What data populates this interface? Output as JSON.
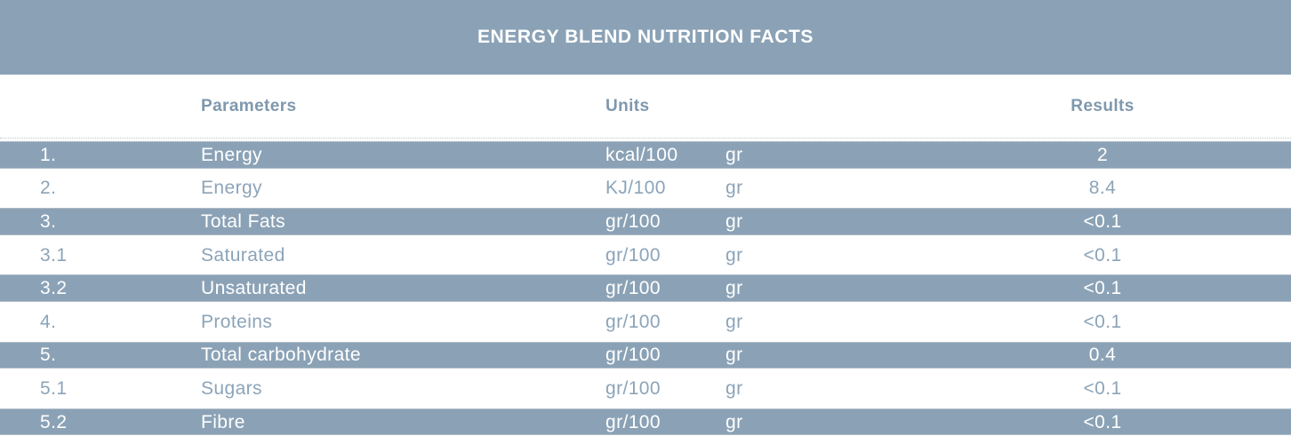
{
  "title": "ENERGY BLEND NUTRITION FACTS",
  "colors": {
    "band": "#8BA2B6",
    "title_text": "#FFFFFF",
    "header_text": "#7E98AE",
    "row_text_on_white": "#8CA4B9",
    "row_text_on_band": "#FFFFFF"
  },
  "columns": {
    "parameters": "Parameters",
    "units": "Units",
    "results": "Results"
  },
  "table": {
    "rows": [
      {
        "num": "1.",
        "param": "Energy",
        "unit": "kcal/100",
        "unit2": "gr",
        "result": "2",
        "shaded": true
      },
      {
        "num": "2.",
        "param": "Energy",
        "unit": "KJ/100",
        "unit2": "gr",
        "result": "8.4",
        "shaded": false
      },
      {
        "num": "3.",
        "param": "Total Fats",
        "unit": "gr/100",
        "unit2": "gr",
        "result": "<0.1",
        "shaded": true
      },
      {
        "num": "3.1",
        "param": "Saturated",
        "unit": "gr/100",
        "unit2": "gr",
        "result": "<0.1",
        "shaded": false
      },
      {
        "num": "3.2",
        "param": "Unsaturated",
        "unit": "gr/100",
        "unit2": "gr",
        "result": "<0.1",
        "shaded": true
      },
      {
        "num": "4.",
        "param": "Proteins",
        "unit": "gr/100",
        "unit2": "gr",
        "result": "<0.1",
        "shaded": false
      },
      {
        "num": "5.",
        "param": "Total carbohydrate",
        "unit": "gr/100",
        "unit2": "gr",
        "result": "0.4",
        "shaded": true
      },
      {
        "num": "5.1",
        "param": "Sugars",
        "unit": "gr/100",
        "unit2": "gr",
        "result": "<0.1",
        "shaded": false
      },
      {
        "num": "5.2",
        "param": "Fibre",
        "unit": "gr/100",
        "unit2": "gr",
        "result": "<0.1",
        "shaded": true
      }
    ]
  }
}
